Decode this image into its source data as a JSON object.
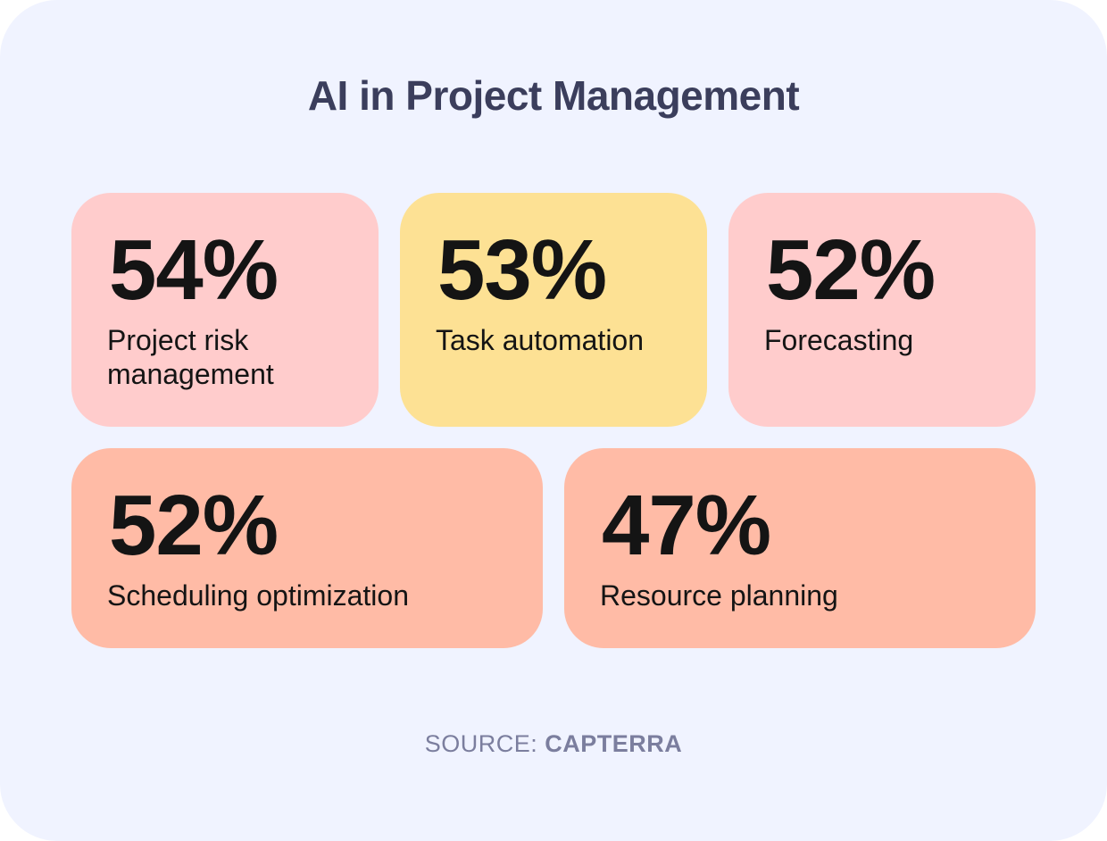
{
  "title": "AI in Project Management",
  "colors": {
    "background": "#f0f3ff",
    "pink": "#ffcccc",
    "yellow": "#fde194",
    "salmon": "#ffbba6",
    "text": "#141414",
    "title": "#3b3e5c",
    "source": "#7b7e9e"
  },
  "chart_data": {
    "type": "table",
    "title": "AI in Project Management",
    "categories": [
      "Project risk management",
      "Task automation",
      "Forecasting",
      "Scheduling optimization",
      "Resource planning"
    ],
    "values": [
      54,
      53,
      52,
      52,
      47
    ],
    "unit": "%"
  },
  "stats": [
    {
      "value": "54%",
      "label": "Project risk management",
      "color": "#ffcccc"
    },
    {
      "value": "53%",
      "label": "Task automation",
      "color": "#fde194"
    },
    {
      "value": "52%",
      "label": "Forecasting",
      "color": "#ffcccc"
    },
    {
      "value": "52%",
      "label": "Scheduling optimization",
      "color": "#ffbba6"
    },
    {
      "value": "47%",
      "label": "Resource planning",
      "color": "#ffbba6"
    }
  ],
  "source": {
    "prefix": "SOURCE:",
    "name": "CAPTERRA"
  }
}
